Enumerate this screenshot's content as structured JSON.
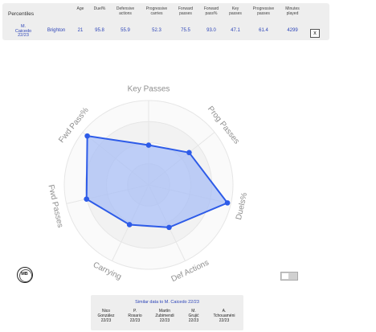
{
  "percentiles": {
    "title": "Percentiles",
    "headers": [
      "Age",
      "Duel%",
      "Defensive\nactions",
      "Progressive\ncarries",
      "Forward\npasses",
      "Forward\npass%",
      "Key\npasses",
      "Progressive\npasses",
      "Minutes\nplayed"
    ],
    "player": "M.\nCaicedo\n22/23",
    "team": "Brighton",
    "values": [
      "21",
      "95.8",
      "55.9",
      "52.3",
      "75.5",
      "93.0",
      "47.1",
      "61.4",
      "4299"
    ],
    "close_label": "x"
  },
  "chart_data": {
    "type": "radar",
    "axes": [
      "Key Passes",
      "Prog Passes",
      "Duels%",
      "Def Actions",
      "Carrying",
      "Fwd Passes",
      "Fwd Pass%"
    ],
    "values": [
      47.1,
      61.4,
      95.8,
      55.9,
      52.3,
      75.5,
      93.0
    ],
    "range": [
      0,
      100
    ],
    "fill_color": "#aabff5",
    "line_color": "#2d5be8",
    "grid_color": "#e6e6e6"
  },
  "badge": {
    "label": "MB"
  },
  "similar": {
    "title": "Similar data to M. Caicedo 22/23",
    "players": [
      "Nico\nGonzález\n22/23",
      "P.\nRosario\n22/23",
      "Martín\nZubimendi\n22/23",
      "M.\nGrujić\n22/23",
      "A.\nTchouaméni\n22/23"
    ]
  }
}
